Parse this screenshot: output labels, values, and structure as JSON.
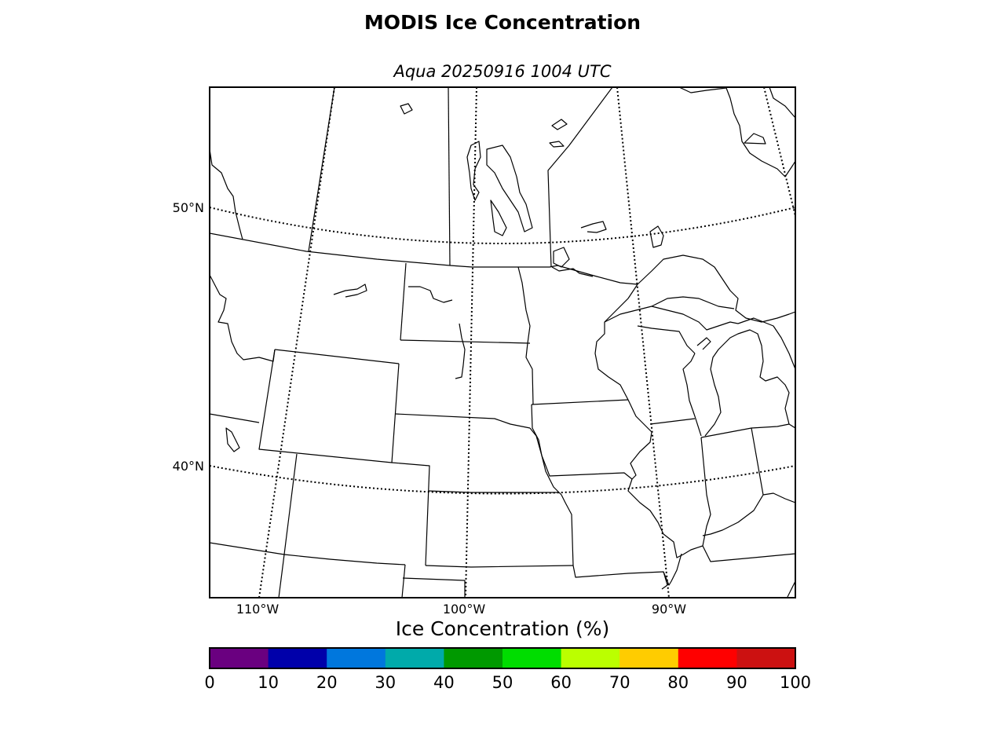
{
  "title": "MODIS Ice Concentration",
  "subtitle": "Aqua 20250916 1004 UTC",
  "map": {
    "lat_labels": [
      "50°N",
      "40°N"
    ],
    "lon_labels": [
      "110°W",
      "100°W",
      "90°W"
    ],
    "line_color": "#000000",
    "background": "#ffffff"
  },
  "colorbar": {
    "title": "Ice Concentration (%)",
    "tick_labels": [
      "0",
      "10",
      "20",
      "30",
      "40",
      "50",
      "60",
      "70",
      "80",
      "90",
      "100"
    ],
    "colors": [
      "#6a0080",
      "#0000aa",
      "#0077dd",
      "#00aaaa",
      "#009900",
      "#00dd00",
      "#bbff00",
      "#ffcc00",
      "#ff0000",
      "#cc1111"
    ]
  }
}
